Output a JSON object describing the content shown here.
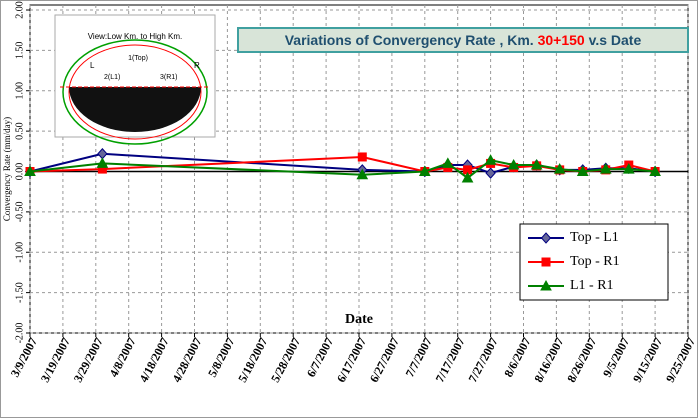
{
  "chart_data": {
    "type": "line",
    "title_parts": [
      "Variations of Convergency Rate ,  Km. ",
      "30+150",
      " v.s Date"
    ],
    "x_label": "Date",
    "y_label": "Convergency Rate (mm/day)",
    "inset_labels": [
      "View:Low Km. to High Km.",
      "1(Top)",
      "L",
      "R",
      "2(L1)",
      "3(R1)"
    ],
    "x": [
      "3/9/2007",
      "3/31/2007",
      "6/18/2007",
      "7/7/2007",
      "7/14/2007",
      "7/20/2007",
      "7/27/2007",
      "8/3/2007",
      "8/10/2007",
      "8/17/2007",
      "8/24/2007",
      "8/31/2007",
      "9/7/2007",
      "9/15/2007"
    ],
    "series": [
      {
        "name": "Top - L1",
        "color": "#000080",
        "marker": "diamond",
        "values": [
          0,
          0.22,
          0.02,
          0.0,
          0.08,
          0.08,
          -0.02,
          0.06,
          0.08,
          0.02,
          0.02,
          0.04,
          0.04,
          0.0
        ]
      },
      {
        "name": "Top - R1",
        "color": "#ff0000",
        "marker": "square",
        "values": [
          0,
          0.03,
          0.18,
          0.0,
          0.05,
          0.02,
          0.1,
          0.05,
          0.07,
          0.02,
          0.0,
          0.02,
          0.08,
          0.0
        ]
      },
      {
        "name": "L1 - R1",
        "color": "#008000",
        "marker": "triangle",
        "values": [
          0,
          0.1,
          -0.04,
          0.0,
          0.1,
          -0.08,
          0.14,
          0.08,
          0.08,
          0.03,
          0.0,
          0.03,
          0.03,
          0.0
        ]
      }
    ],
    "xlim": [
      "3/9/2007",
      "9/25/2007"
    ],
    "xticks": [
      "3/9/2007",
      "3/19/2007",
      "3/29/2007",
      "4/8/2007",
      "4/18/2007",
      "4/28/2007",
      "5/8/2007",
      "5/18/2007",
      "5/28/2007",
      "6/7/2007",
      "6/17/2007",
      "6/27/2007",
      "7/7/2007",
      "7/17/2007",
      "7/27/2007",
      "8/6/2007",
      "8/16/2007",
      "8/26/2007",
      "9/5/2007",
      "9/15/2007",
      "9/25/2007"
    ],
    "ylim": [
      -2,
      2
    ],
    "yticks": [
      {
        "value": -2,
        "label": "-2.00"
      },
      {
        "value": -1.5,
        "label": "-1.50"
      },
      {
        "value": -1,
        "label": "-1.00"
      },
      {
        "value": -0.5,
        "label": "-0.50"
      },
      {
        "value": 0,
        "label": "0.00"
      },
      {
        "value": 0.5,
        "label": "0.50"
      },
      {
        "value": 1,
        "label": "1.00"
      },
      {
        "value": 1.5,
        "label": "1.50"
      },
      {
        "value": 2,
        "label": "2.00"
      }
    ],
    "grid": true,
    "legend": "lower right"
  }
}
